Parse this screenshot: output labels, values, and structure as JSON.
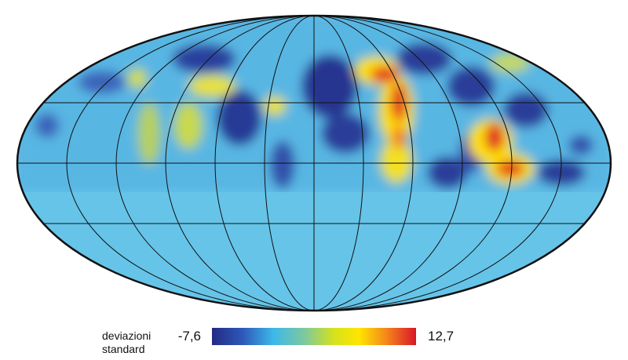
{
  "colorbar": {
    "label_line1": "deviazioni",
    "label_line2": "standard",
    "min": {
      "value": -7.6,
      "label": "-7,6"
    },
    "max": {
      "value": 12.7,
      "label": "12,7"
    }
  }
}
